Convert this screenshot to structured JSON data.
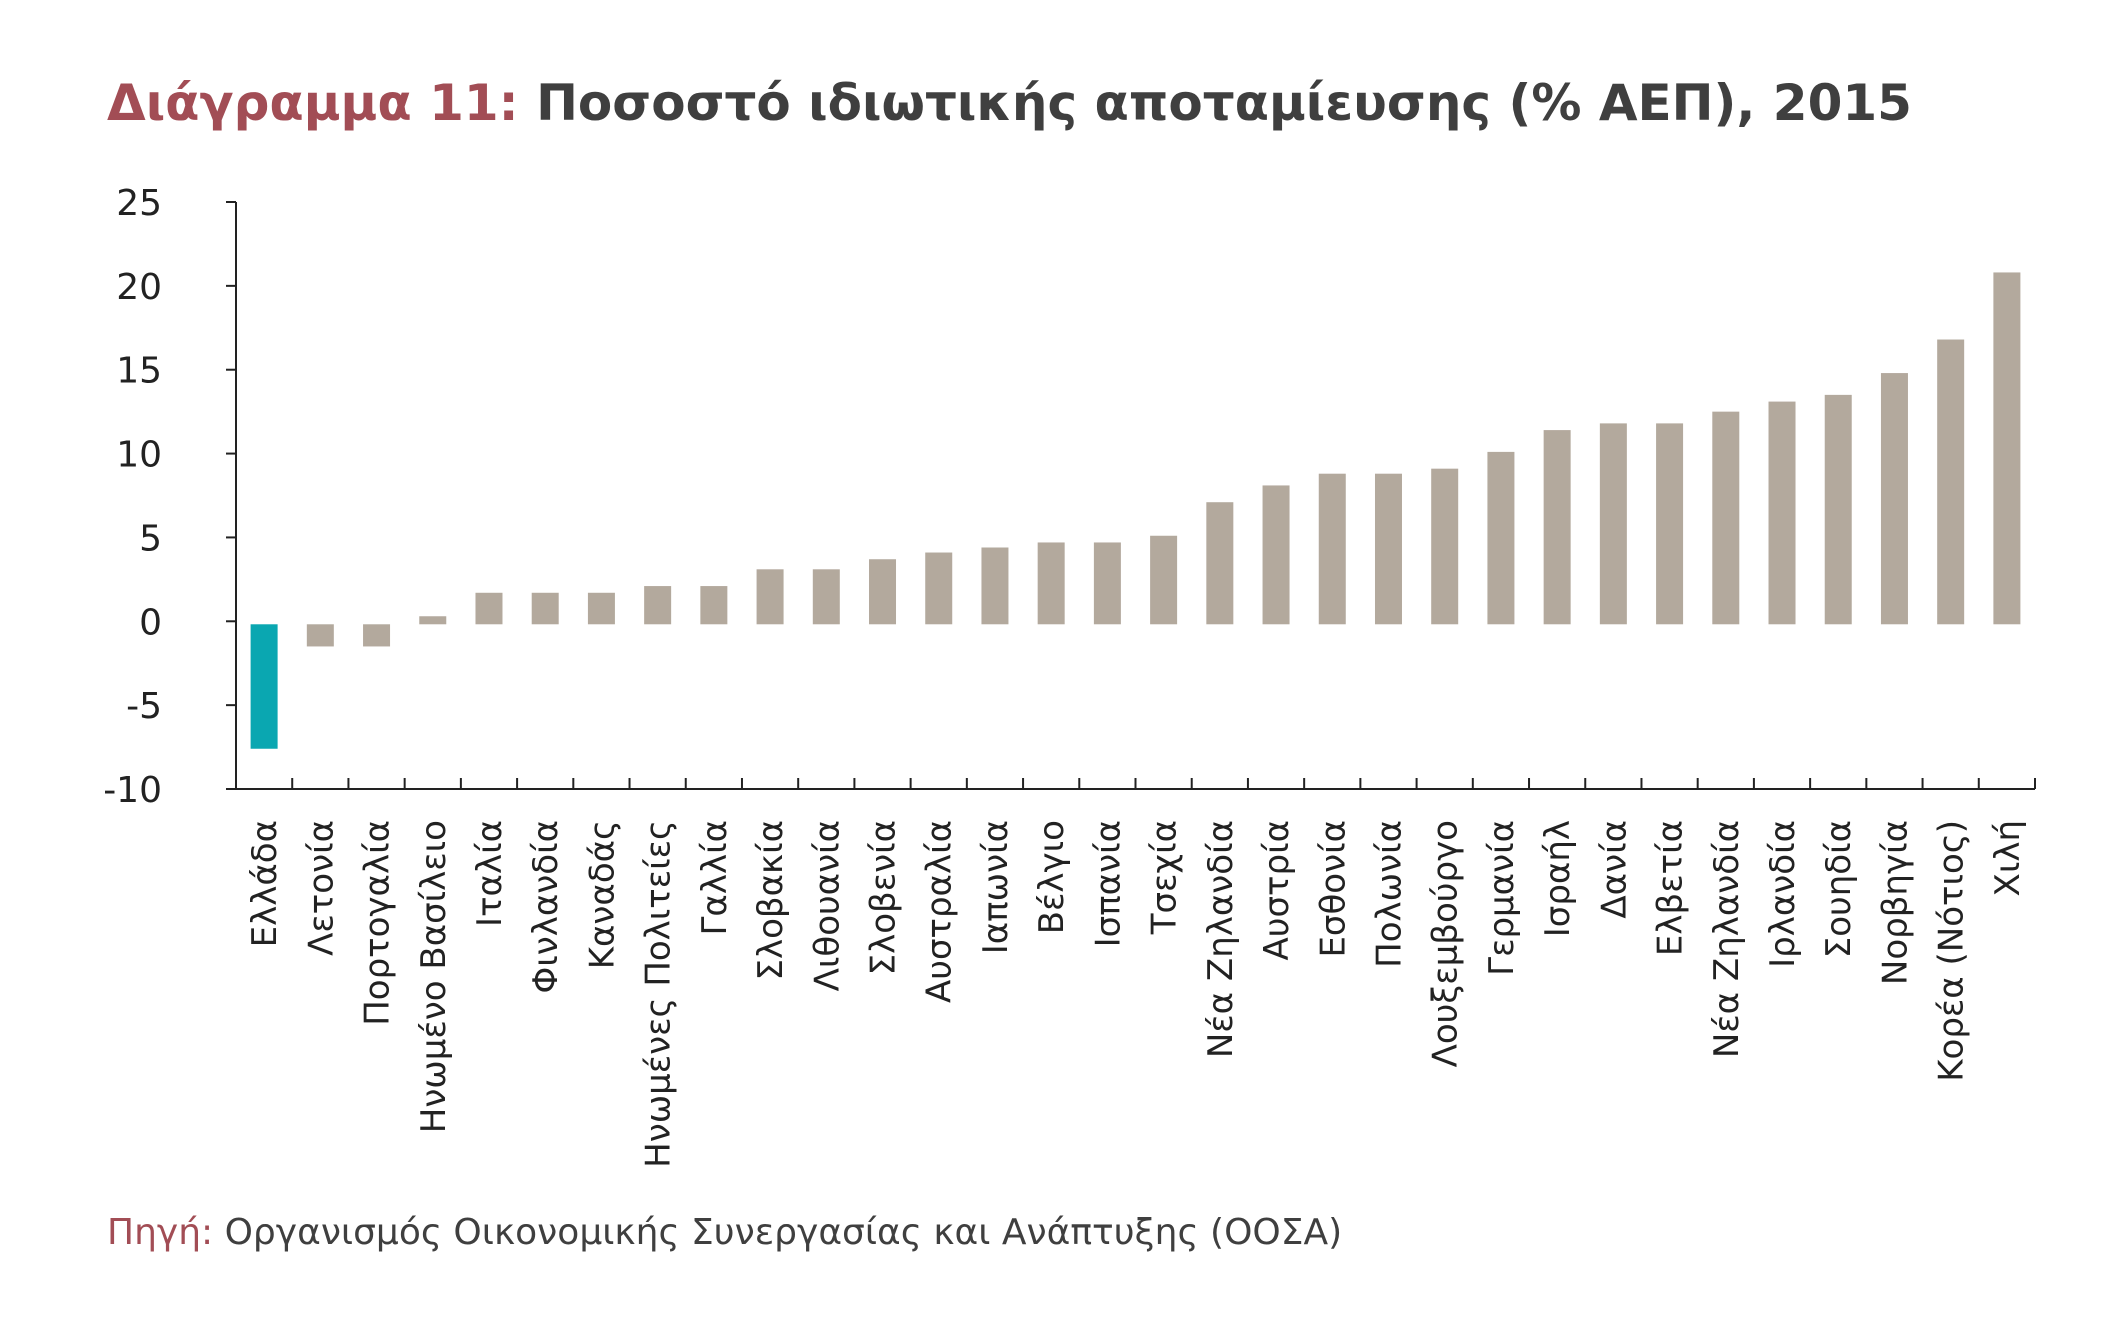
{
  "chart_data": {
    "type": "bar",
    "title_lead": "Διάγραμμα 11:",
    "title_rest": "Ποσοστό ιδιωτικής αποταμίευσης (% ΑΕΠ), 2015",
    "xlabel": "",
    "ylabel": "",
    "ylim": [
      -10,
      25
    ],
    "yticks": [
      25,
      20,
      15,
      10,
      5,
      0,
      -5,
      -10
    ],
    "grid": false,
    "legend": "none",
    "categories": [
      "Ελλάδα",
      "Λετονία",
      "Πορτογαλία",
      "Ηνωμένο Βασίλειο",
      "Ιταλία",
      "Φινλανδία",
      "Καναδάς",
      "Ηνωμένες Πολιτείες",
      "Γαλλία",
      "Σλοβακία",
      "Λιθουανία",
      "Σλοβενία",
      "Αυστραλία",
      "Ιαπωνία",
      "Βέλγιο",
      "Ισπανία",
      "Τσεχία",
      "Νέα Ζηλανδία",
      "Αυστρία",
      "Εσθονία",
      "Πολωνία",
      "Λουξεμβούργο",
      "Γερμανία",
      "Ισραήλ",
      "Δανία",
      "Ελβετία",
      "Νέα Ζηλανδία",
      "Ιρλανδία",
      "Σουηδία",
      "Νορβηγία",
      "Κορέα (Νότιος)",
      "Χιλή"
    ],
    "values": [
      -7.6,
      -1.5,
      -1.5,
      0.3,
      1.7,
      1.7,
      1.7,
      2.1,
      2.1,
      3.1,
      3.1,
      3.7,
      4.1,
      4.4,
      4.7,
      4.7,
      5.1,
      7.1,
      8.1,
      8.8,
      8.8,
      9.1,
      10.1,
      11.4,
      11.8,
      11.8,
      12.5,
      13.1,
      13.5,
      14.8,
      16.8,
      20.8
    ],
    "highlight_index": 0,
    "colors": {
      "highlight": "#0aa7b1",
      "bar": "#b3a99d",
      "axis": "#222222",
      "title_accent": "#a24d55",
      "text": "#3f3f3f"
    }
  },
  "source": {
    "label": "Πηγή:",
    "text": "Οργανισμός Οικονομικής Συνεργασίας και Ανάπτυξης (ΟΟΣΑ)"
  }
}
